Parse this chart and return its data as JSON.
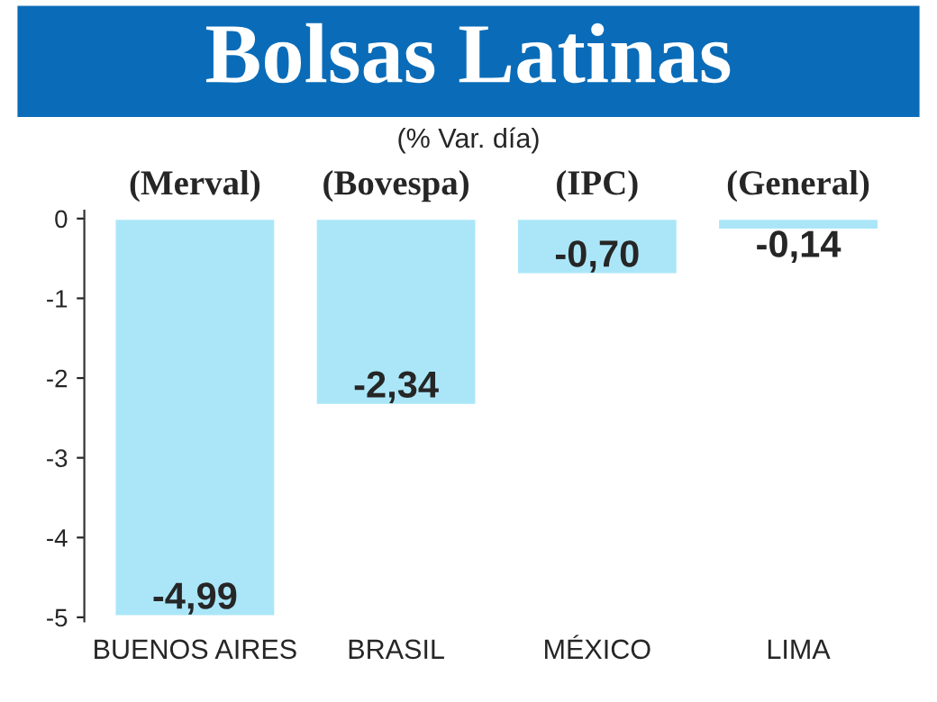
{
  "chart_data": {
    "type": "bar",
    "title": "Bolsas Latinas",
    "subtitle": "(% Var. día)",
    "categories": [
      "BUENOS AIRES",
      "BRASIL",
      "MÉXICO",
      "LIMA"
    ],
    "values": [
      -4.99,
      -2.34,
      -0.7,
      -0.14
    ],
    "value_labels": [
      "-4,99",
      "-2,34",
      "-0,70",
      "-0,14"
    ],
    "color": "#aae6f8",
    "annotations": [
      "(Merval)",
      "(Bovespa)",
      "(IPC)",
      "(General)"
    ],
    "ylim": [
      -5.05,
      0.1
    ],
    "yticks": [
      0,
      -1,
      -2,
      -3,
      -4,
      -5
    ],
    "grid": false
  }
}
